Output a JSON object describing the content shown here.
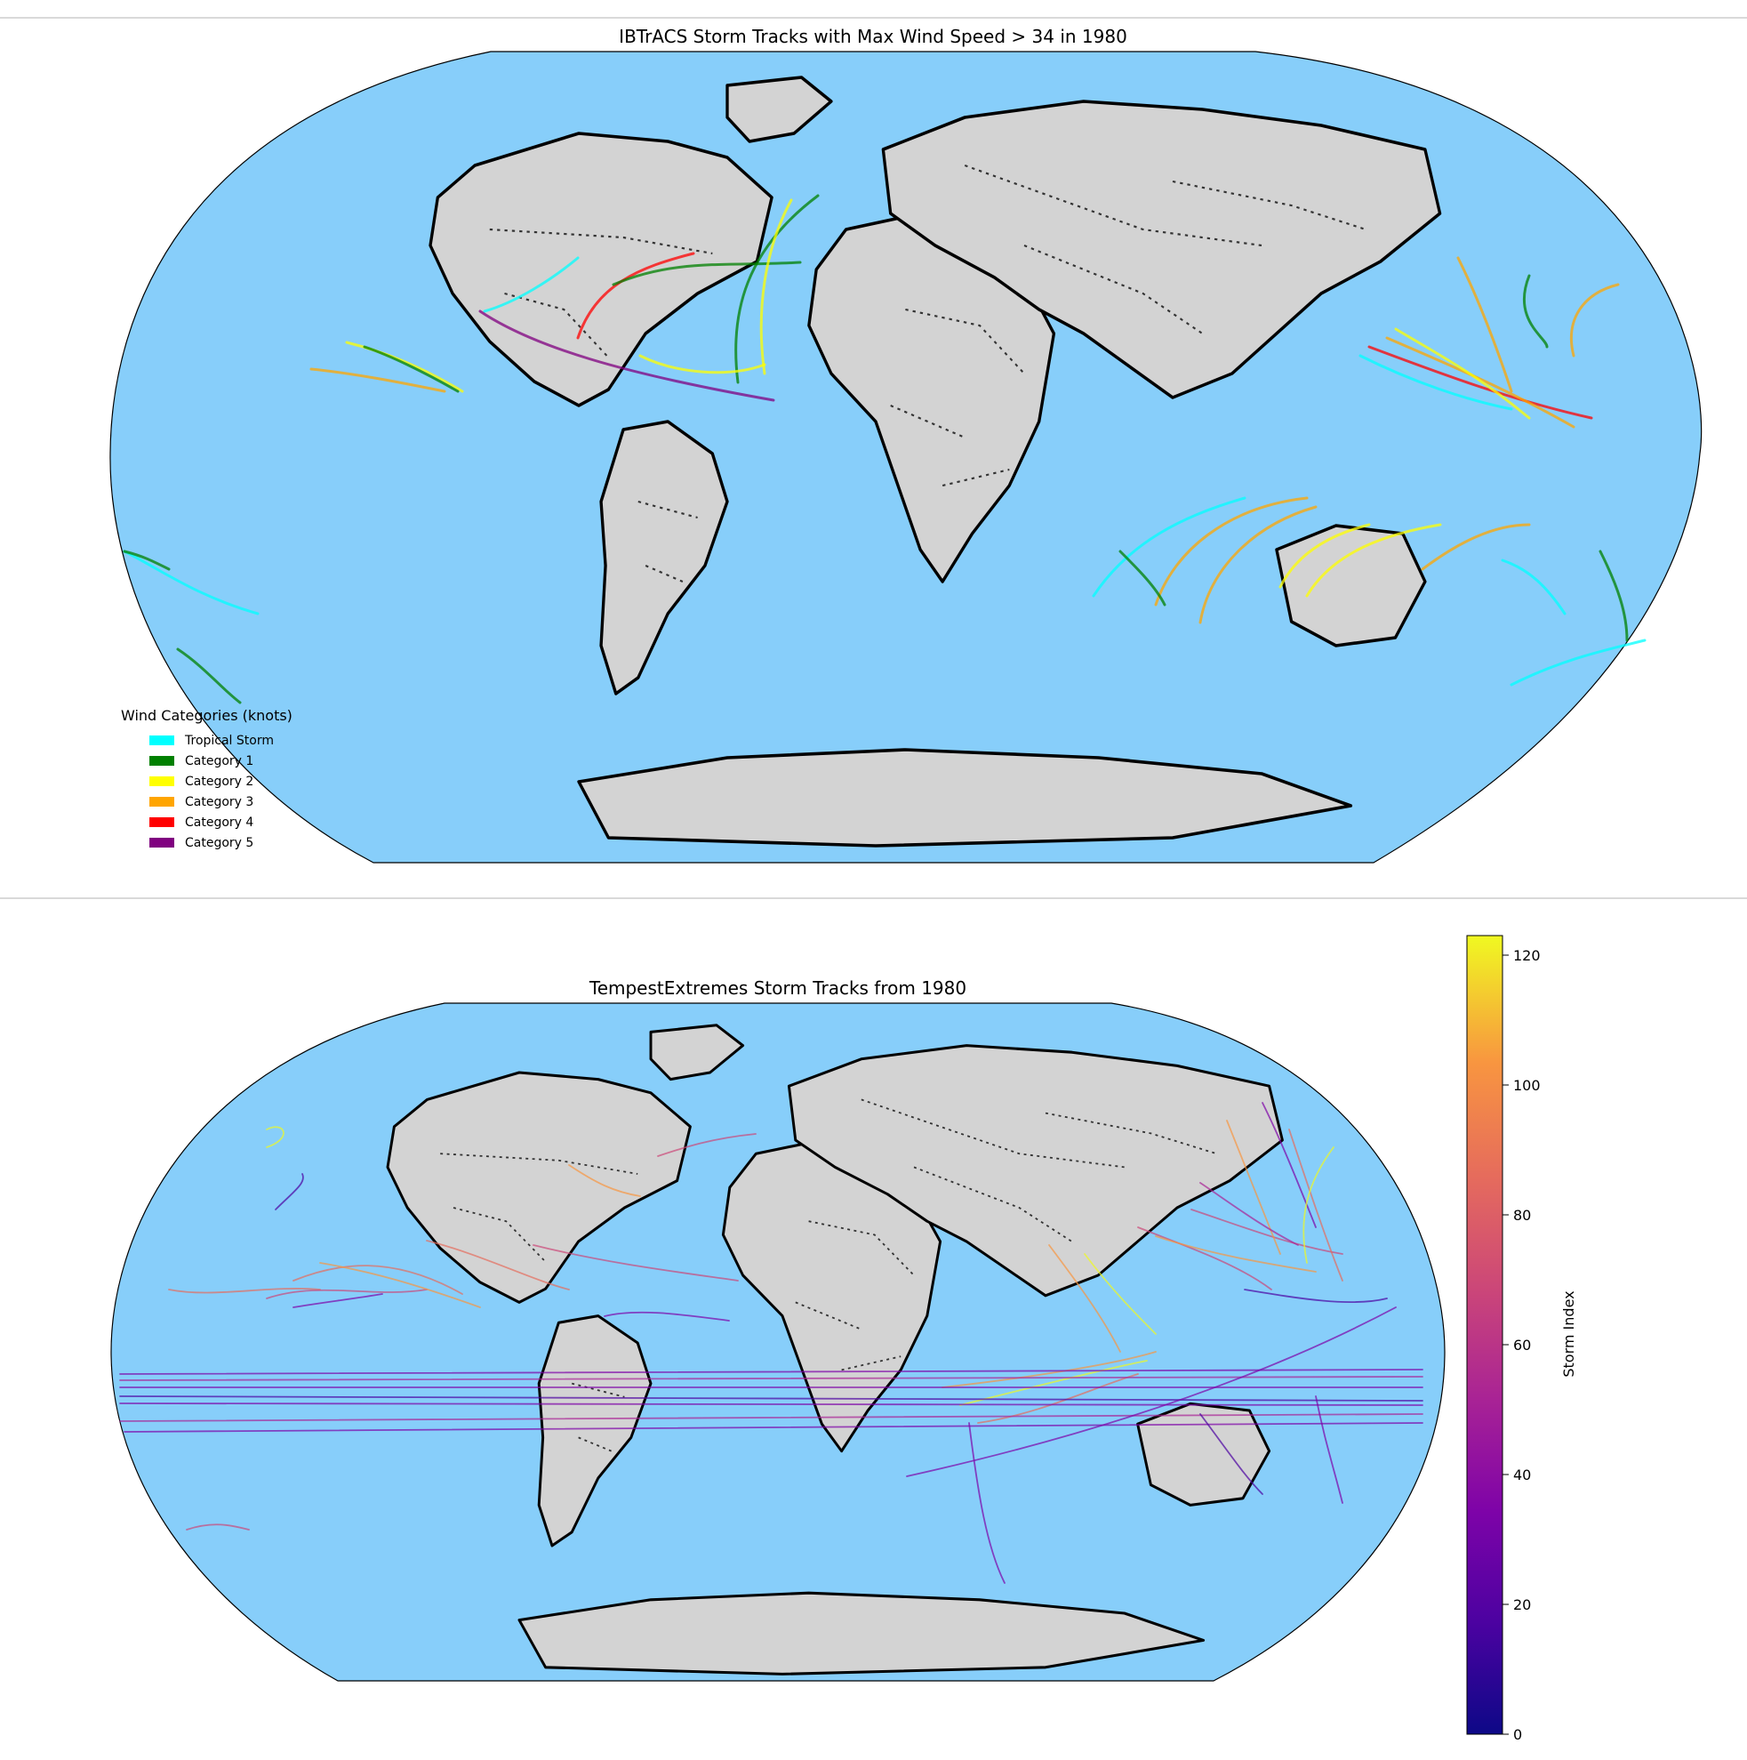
{
  "panel_top": {
    "title": "IBTrACS Storm Tracks with Max Wind Speed > 34 in 1980",
    "legend": {
      "title": "Wind Categories (knots)",
      "items": [
        {
          "label": "Tropical Storm",
          "color": "#00FFFF"
        },
        {
          "label": "Category 1",
          "color": "#008000"
        },
        {
          "label": "Category 2",
          "color": "#FFFF00"
        },
        {
          "label": "Category 3",
          "color": "#FFA500"
        },
        {
          "label": "Category 4",
          "color": "#FF0000"
        },
        {
          "label": "Category 5",
          "color": "#800080"
        }
      ]
    }
  },
  "panel_bottom": {
    "title": "TempestExtremes Storm Tracks from 1980",
    "colorbar": {
      "label": "Storm Index",
      "ticks": [
        "0",
        "20",
        "40",
        "60",
        "80",
        "100",
        "120"
      ],
      "min": 0,
      "max": 123,
      "colormap": "plasma"
    }
  },
  "colors": {
    "ocean": "#87CEFA",
    "land": "#d3d3d3"
  }
}
